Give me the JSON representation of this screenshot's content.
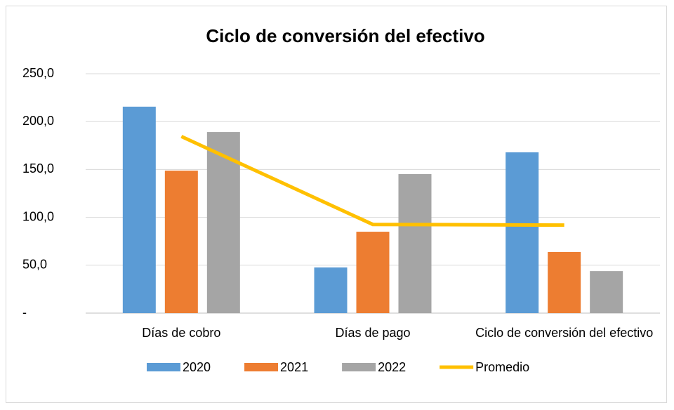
{
  "chart_data": {
    "type": "bar",
    "title": "Ciclo de conversión del efectivo",
    "categories": [
      "Días de cobro",
      "Días de pago",
      "Ciclo de conversión del efectivo"
    ],
    "series": [
      {
        "name": "2020",
        "color": "#5b9bd5",
        "type": "bar",
        "values": [
          215.6,
          47.7,
          167.9
        ]
      },
      {
        "name": "2021",
        "color": "#ed7d31",
        "type": "bar",
        "values": [
          148.8,
          85.0,
          63.8
        ]
      },
      {
        "name": "2022",
        "color": "#a5a5a5",
        "type": "bar",
        "values": [
          189.1,
          145.2,
          43.9
        ]
      },
      {
        "name": "Promedio",
        "color": "#ffc000",
        "type": "line",
        "values": [
          184.5,
          92.6,
          91.9
        ]
      }
    ],
    "ylim": [
      0,
      250
    ],
    "yticks": [
      {
        "value": 0,
        "label": "-"
      },
      {
        "value": 50,
        "label": "50,0"
      },
      {
        "value": 100,
        "label": "100,0"
      },
      {
        "value": 150,
        "label": "150,0"
      },
      {
        "value": 200,
        "label": "200,0"
      },
      {
        "value": 250,
        "label": "250,0"
      }
    ],
    "grid": true,
    "legend": "bottom"
  }
}
